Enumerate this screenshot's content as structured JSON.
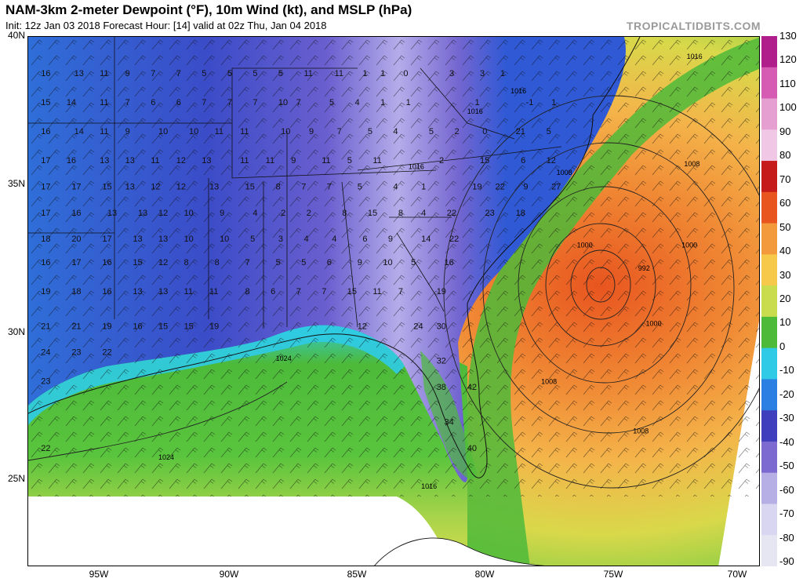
{
  "header": {
    "title": "NAM-3km 2-meter Dewpoint (°F), 10m Wind (kt), and MSLP (hPa)",
    "subtitle": "Init: 12z Jan 03 2018   Forecast Hour: [14]   valid at 02z Thu, Jan 04 2018",
    "brand": "TROPICALTIDBITS.COM"
  },
  "axes": {
    "lat_labels": [
      "40N",
      "35N",
      "30N",
      "25N"
    ],
    "lon_labels": [
      "95W",
      "90W",
      "85W",
      "80W",
      "75W",
      "70W"
    ]
  },
  "colorbar": {
    "labels": [
      "130",
      "120",
      "110",
      "100",
      "90",
      "80",
      "70",
      "60",
      "50",
      "40",
      "30",
      "20",
      "10",
      "0",
      "-10",
      "-20",
      "-30",
      "-40",
      "-50",
      "-60",
      "-70",
      "-80",
      "-90"
    ],
    "colors": [
      "#b01e8c",
      "#d65cb3",
      "#e59fd1",
      "#f0c8e6",
      "#c51b1b",
      "#e8551f",
      "#f39a3c",
      "#f6c94a",
      "#c9dc4e",
      "#4dba3a",
      "#2fcbe6",
      "#2b7ee2",
      "#3f3fbe",
      "#7c6ad0",
      "#b6afe6",
      "#d9d6f2",
      "#e6e6f2"
    ]
  },
  "map": {
    "dewpoint_values": [
      {
        "v": "16",
        "lon": -97.8,
        "lat": 38.8
      },
      {
        "v": "13",
        "lon": -96.5,
        "lat": 38.8
      },
      {
        "v": "11",
        "lon": -95.5,
        "lat": 38.8
      },
      {
        "v": "9",
        "lon": -94.5,
        "lat": 38.8
      },
      {
        "v": "7",
        "lon": -93.5,
        "lat": 38.8
      },
      {
        "v": "7",
        "lon": -92.5,
        "lat": 38.8
      },
      {
        "v": "5",
        "lon": -91.5,
        "lat": 38.8
      },
      {
        "v": "5",
        "lon": -90.5,
        "lat": 38.8
      },
      {
        "v": "5",
        "lon": -89.5,
        "lat": 38.8
      },
      {
        "v": "5",
        "lon": -88.5,
        "lat": 38.8
      },
      {
        "v": "11",
        "lon": -87.5,
        "lat": 38.8
      },
      {
        "v": "11",
        "lon": -86.3,
        "lat": 38.8
      },
      {
        "v": "1",
        "lon": -85.2,
        "lat": 38.8
      },
      {
        "v": "1",
        "lon": -84.5,
        "lat": 38.8
      },
      {
        "v": "0",
        "lon": -83.6,
        "lat": 38.8
      },
      {
        "v": "3",
        "lon": -81.8,
        "lat": 38.8
      },
      {
        "v": "3",
        "lon": -80.6,
        "lat": 38.8
      },
      {
        "v": "1",
        "lon": -79.8,
        "lat": 38.8
      },
      {
        "v": "15",
        "lon": -97.8,
        "lat": 37.8
      },
      {
        "v": "14",
        "lon": -96.8,
        "lat": 37.8
      },
      {
        "v": "11",
        "lon": -95.5,
        "lat": 37.8
      },
      {
        "v": "7",
        "lon": -94.5,
        "lat": 37.8
      },
      {
        "v": "6",
        "lon": -93.5,
        "lat": 37.8
      },
      {
        "v": "6",
        "lon": -92.5,
        "lat": 37.8
      },
      {
        "v": "7",
        "lon": -91.5,
        "lat": 37.8
      },
      {
        "v": "7",
        "lon": -90.5,
        "lat": 37.8
      },
      {
        "v": "7",
        "lon": -89.5,
        "lat": 37.8
      },
      {
        "v": "10",
        "lon": -88.5,
        "lat": 37.8
      },
      {
        "v": "7",
        "lon": -87.8,
        "lat": 37.8
      },
      {
        "v": "5",
        "lon": -86.5,
        "lat": 37.8
      },
      {
        "v": "4",
        "lon": -85.5,
        "lat": 37.8
      },
      {
        "v": "1",
        "lon": -84.5,
        "lat": 37.8
      },
      {
        "v": "1",
        "lon": -83.5,
        "lat": 37.8
      },
      {
        "v": "1",
        "lon": -80.8,
        "lat": 37.8
      },
      {
        "v": "-1",
        "lon": -78.8,
        "lat": 37.8
      },
      {
        "v": "1",
        "lon": -77.8,
        "lat": 37.8
      },
      {
        "v": "16",
        "lon": -97.8,
        "lat": 36.8
      },
      {
        "v": "14",
        "lon": -96.5,
        "lat": 36.8
      },
      {
        "v": "11",
        "lon": -95.5,
        "lat": 36.8
      },
      {
        "v": "9",
        "lon": -94.5,
        "lat": 36.8
      },
      {
        "v": "10",
        "lon": -93.2,
        "lat": 36.8
      },
      {
        "v": "10",
        "lon": -92,
        "lat": 36.8
      },
      {
        "v": "11",
        "lon": -91,
        "lat": 36.8
      },
      {
        "v": "11",
        "lon": -90,
        "lat": 36.8
      },
      {
        "v": "10",
        "lon": -88.4,
        "lat": 36.8
      },
      {
        "v": "9",
        "lon": -87.3,
        "lat": 36.8
      },
      {
        "v": "7",
        "lon": -86.2,
        "lat": 36.8
      },
      {
        "v": "5",
        "lon": -85,
        "lat": 36.8
      },
      {
        "v": "4",
        "lon": -84,
        "lat": 36.8
      },
      {
        "v": "5",
        "lon": -82.6,
        "lat": 36.8
      },
      {
        "v": "2",
        "lon": -81.6,
        "lat": 36.8
      },
      {
        "v": "0",
        "lon": -80.5,
        "lat": 36.8
      },
      {
        "v": "21",
        "lon": -79.2,
        "lat": 36.8
      },
      {
        "v": "5",
        "lon": -78,
        "lat": 36.8
      },
      {
        "v": "17",
        "lon": -97.8,
        "lat": 35.8
      },
      {
        "v": "16",
        "lon": -96.8,
        "lat": 35.8
      },
      {
        "v": "13",
        "lon": -95.5,
        "lat": 35.8
      },
      {
        "v": "13",
        "lon": -94.5,
        "lat": 35.8
      },
      {
        "v": "11",
        "lon": -93.5,
        "lat": 35.8
      },
      {
        "v": "12",
        "lon": -92.5,
        "lat": 35.8
      },
      {
        "v": "13",
        "lon": -91.5,
        "lat": 35.8
      },
      {
        "v": "11",
        "lon": -90,
        "lat": 35.8
      },
      {
        "v": "11",
        "lon": -89,
        "lat": 35.8
      },
      {
        "v": "9",
        "lon": -88,
        "lat": 35.8
      },
      {
        "v": "11",
        "lon": -86.8,
        "lat": 35.8
      },
      {
        "v": "5",
        "lon": -85.8,
        "lat": 35.8
      },
      {
        "v": "11",
        "lon": -84.8,
        "lat": 35.8
      },
      {
        "v": "2",
        "lon": -82.2,
        "lat": 35.8
      },
      {
        "v": "15",
        "lon": -80.6,
        "lat": 35.8
      },
      {
        "v": "6",
        "lon": -79,
        "lat": 35.8
      },
      {
        "v": "12",
        "lon": -78,
        "lat": 35.8
      },
      {
        "v": "17",
        "lon": -97.8,
        "lat": 34.9
      },
      {
        "v": "17",
        "lon": -96.6,
        "lat": 34.9
      },
      {
        "v": "15",
        "lon": -95.4,
        "lat": 34.9
      },
      {
        "v": "13",
        "lon": -94.5,
        "lat": 34.9
      },
      {
        "v": "12",
        "lon": -93.5,
        "lat": 34.9
      },
      {
        "v": "12",
        "lon": -92.5,
        "lat": 34.9
      },
      {
        "v": "13",
        "lon": -91.2,
        "lat": 34.9
      },
      {
        "v": "15",
        "lon": -89.8,
        "lat": 34.9
      },
      {
        "v": "8",
        "lon": -88.6,
        "lat": 34.9
      },
      {
        "v": "7",
        "lon": -87.6,
        "lat": 34.9
      },
      {
        "v": "7",
        "lon": -86.6,
        "lat": 34.9
      },
      {
        "v": "5",
        "lon": -85.4,
        "lat": 34.9
      },
      {
        "v": "4",
        "lon": -84,
        "lat": 34.9
      },
      {
        "v": "1",
        "lon": -82.9,
        "lat": 34.9
      },
      {
        "v": "19",
        "lon": -80.9,
        "lat": 34.9
      },
      {
        "v": "22",
        "lon": -80,
        "lat": 34.9
      },
      {
        "v": "9",
        "lon": -78.9,
        "lat": 34.9
      },
      {
        "v": "27",
        "lon": -77.8,
        "lat": 34.9
      },
      {
        "v": "17",
        "lon": -97.8,
        "lat": 34
      },
      {
        "v": "16",
        "lon": -96.6,
        "lat": 34
      },
      {
        "v": "13",
        "lon": -95.2,
        "lat": 34
      },
      {
        "v": "13",
        "lon": -94,
        "lat": 34
      },
      {
        "v": "12",
        "lon": -93.2,
        "lat": 34
      },
      {
        "v": "10",
        "lon": -92.2,
        "lat": 34
      },
      {
        "v": "9",
        "lon": -90.8,
        "lat": 34
      },
      {
        "v": "4",
        "lon": -89.5,
        "lat": 34
      },
      {
        "v": "2",
        "lon": -88.4,
        "lat": 34
      },
      {
        "v": "2",
        "lon": -87.4,
        "lat": 34
      },
      {
        "v": "8",
        "lon": -86,
        "lat": 34
      },
      {
        "v": "15",
        "lon": -85,
        "lat": 34
      },
      {
        "v": "8",
        "lon": -83.8,
        "lat": 34
      },
      {
        "v": "4",
        "lon": -82.9,
        "lat": 34
      },
      {
        "v": "22",
        "lon": -81.9,
        "lat": 34
      },
      {
        "v": "23",
        "lon": -80.4,
        "lat": 34
      },
      {
        "v": "18",
        "lon": -79.2,
        "lat": 34
      },
      {
        "v": "18",
        "lon": -97.8,
        "lat": 33.1
      },
      {
        "v": "20",
        "lon": -96.6,
        "lat": 33.1
      },
      {
        "v": "17",
        "lon": -95.4,
        "lat": 33.1
      },
      {
        "v": "13",
        "lon": -94.2,
        "lat": 33.1
      },
      {
        "v": "13",
        "lon": -93.2,
        "lat": 33.1
      },
      {
        "v": "10",
        "lon": -92.2,
        "lat": 33.1
      },
      {
        "v": "10",
        "lon": -90.8,
        "lat": 33.1
      },
      {
        "v": "5",
        "lon": -89.6,
        "lat": 33.1
      },
      {
        "v": "3",
        "lon": -88.5,
        "lat": 33.1
      },
      {
        "v": "4",
        "lon": -87.5,
        "lat": 33.1
      },
      {
        "v": "4",
        "lon": -86.4,
        "lat": 33.1
      },
      {
        "v": "6",
        "lon": -85.2,
        "lat": 33.1
      },
      {
        "v": "9",
        "lon": -84.2,
        "lat": 33.1
      },
      {
        "v": "14",
        "lon": -82.9,
        "lat": 33.1
      },
      {
        "v": "22",
        "lon": -81.8,
        "lat": 33.1
      },
      {
        "v": "16",
        "lon": -97.8,
        "lat": 32.3
      },
      {
        "v": "17",
        "lon": -96.6,
        "lat": 32.3
      },
      {
        "v": "16",
        "lon": -95.4,
        "lat": 32.3
      },
      {
        "v": "15",
        "lon": -94.2,
        "lat": 32.3
      },
      {
        "v": "12",
        "lon": -93.2,
        "lat": 32.3
      },
      {
        "v": "8",
        "lon": -92.2,
        "lat": 32.3
      },
      {
        "v": "8",
        "lon": -91,
        "lat": 32.3
      },
      {
        "v": "7",
        "lon": -89.8,
        "lat": 32.3
      },
      {
        "v": "5",
        "lon": -88.6,
        "lat": 32.3
      },
      {
        "v": "5",
        "lon": -87.6,
        "lat": 32.3
      },
      {
        "v": "6",
        "lon": -86.6,
        "lat": 32.3
      },
      {
        "v": "9",
        "lon": -85.4,
        "lat": 32.3
      },
      {
        "v": "10",
        "lon": -84.4,
        "lat": 32.3
      },
      {
        "v": "5",
        "lon": -83.3,
        "lat": 32.3
      },
      {
        "v": "16",
        "lon": -82,
        "lat": 32.3
      },
      {
        "v": "19",
        "lon": -97.8,
        "lat": 31.3
      },
      {
        "v": "18",
        "lon": -96.6,
        "lat": 31.3
      },
      {
        "v": "16",
        "lon": -95.4,
        "lat": 31.3
      },
      {
        "v": "13",
        "lon": -94.2,
        "lat": 31.3
      },
      {
        "v": "13",
        "lon": -93.2,
        "lat": 31.3
      },
      {
        "v": "11",
        "lon": -92.2,
        "lat": 31.3
      },
      {
        "v": "11",
        "lon": -91.2,
        "lat": 31.3
      },
      {
        "v": "8",
        "lon": -89.8,
        "lat": 31.3
      },
      {
        "v": "6",
        "lon": -88.8,
        "lat": 31.3
      },
      {
        "v": "7",
        "lon": -87.8,
        "lat": 31.3
      },
      {
        "v": "7",
        "lon": -86.8,
        "lat": 31.3
      },
      {
        "v": "15",
        "lon": -85.8,
        "lat": 31.3
      },
      {
        "v": "11",
        "lon": -84.8,
        "lat": 31.3
      },
      {
        "v": "7",
        "lon": -83.8,
        "lat": 31.3
      },
      {
        "v": "19",
        "lon": -82.3,
        "lat": 31.3
      },
      {
        "v": "21",
        "lon": -97.8,
        "lat": 30.1
      },
      {
        "v": "21",
        "lon": -96.6,
        "lat": 30.1
      },
      {
        "v": "19",
        "lon": -95.4,
        "lat": 30.1
      },
      {
        "v": "16",
        "lon": -94.2,
        "lat": 30.1
      },
      {
        "v": "15",
        "lon": -93.2,
        "lat": 30.1
      },
      {
        "v": "15",
        "lon": -92.2,
        "lat": 30.1
      },
      {
        "v": "19",
        "lon": -91.2,
        "lat": 30.1
      },
      {
        "v": "12",
        "lon": -85.4,
        "lat": 30.1
      },
      {
        "v": "24",
        "lon": -83.2,
        "lat": 30.1
      },
      {
        "v": "30",
        "lon": -82.3,
        "lat": 30.1
      },
      {
        "v": "24",
        "lon": -97.8,
        "lat": 29.2
      },
      {
        "v": "23",
        "lon": -96.6,
        "lat": 29.2
      },
      {
        "v": "22",
        "lon": -95.4,
        "lat": 29.2
      },
      {
        "v": "32",
        "lon": -82.3,
        "lat": 28.9
      },
      {
        "v": "23",
        "lon": -97.8,
        "lat": 28.2
      },
      {
        "v": "38",
        "lon": -82.3,
        "lat": 28.0
      },
      {
        "v": "42",
        "lon": -81.1,
        "lat": 28.0
      },
      {
        "v": "34",
        "lon": -82.0,
        "lat": 26.8
      },
      {
        "v": "22",
        "lon": -97.8,
        "lat": 25.9
      },
      {
        "v": "40",
        "lon": -81.1,
        "lat": 25.9
      }
    ],
    "isobar_labels": [
      {
        "v": "1016",
        "lon": -72.5,
        "lat": 39.4
      },
      {
        "v": "1016",
        "lon": -79.4,
        "lat": 38.2
      },
      {
        "v": "1016",
        "lon": -81.1,
        "lat": 37.5
      },
      {
        "v": "1016",
        "lon": -83.4,
        "lat": 35.6
      },
      {
        "v": "1008",
        "lon": -77.6,
        "lat": 35.4
      },
      {
        "v": "1008",
        "lon": -72.6,
        "lat": 35.7
      },
      {
        "v": "1000",
        "lon": -76.8,
        "lat": 32.9
      },
      {
        "v": "1000",
        "lon": -72.7,
        "lat": 32.9
      },
      {
        "v": "992",
        "lon": -74.4,
        "lat": 32.1
      },
      {
        "v": "1000",
        "lon": -74.1,
        "lat": 30.2
      },
      {
        "v": "1008",
        "lon": -78.2,
        "lat": 28.2
      },
      {
        "v": "1008",
        "lon": -74.6,
        "lat": 26.5
      },
      {
        "v": "1024",
        "lon": -88.6,
        "lat": 29.0
      },
      {
        "v": "1024",
        "lon": -93.2,
        "lat": 25.6
      },
      {
        "v": "1016",
        "lon": -82.9,
        "lat": 24.6
      }
    ]
  }
}
